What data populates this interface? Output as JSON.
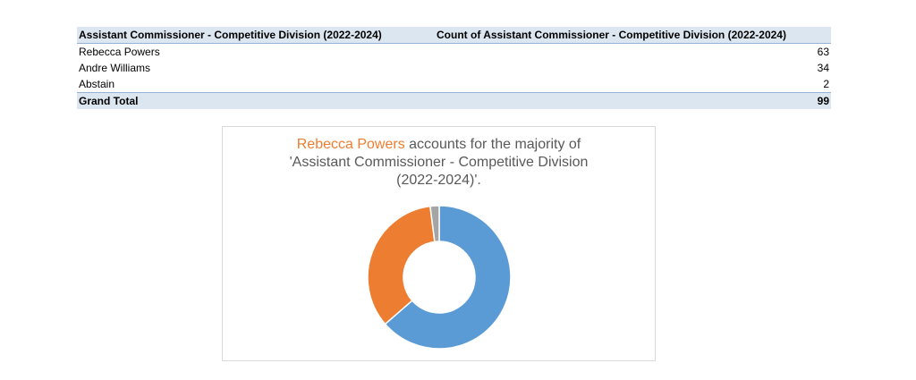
{
  "table": {
    "header_label": "Assistant Commissioner - Competitive Division (2022-2024)",
    "header_count": "Count of Assistant Commissioner - Competitive Division (2022-2024)",
    "rows": [
      {
        "label": "Rebecca Powers",
        "count": "63"
      },
      {
        "label": "Andre Williams",
        "count": "34"
      },
      {
        "label": "Abstain",
        "count": "2"
      }
    ],
    "total_label": "Grand Total",
    "total_count": "99"
  },
  "chart_title": {
    "highlight": "Rebecca Powers",
    "rest_line1": " accounts for the majority of",
    "line2": "'Assistant Commissioner - Competitive Division",
    "line3": "(2022-2024)'."
  },
  "chart_data": {
    "type": "pie",
    "variant": "donut",
    "categories": [
      "Rebecca Powers",
      "Andre Williams",
      "Abstain"
    ],
    "values": [
      63,
      34,
      2
    ],
    "colors": [
      "#5b9bd5",
      "#ed7d31",
      "#a5a5a5"
    ],
    "legend": "none"
  }
}
